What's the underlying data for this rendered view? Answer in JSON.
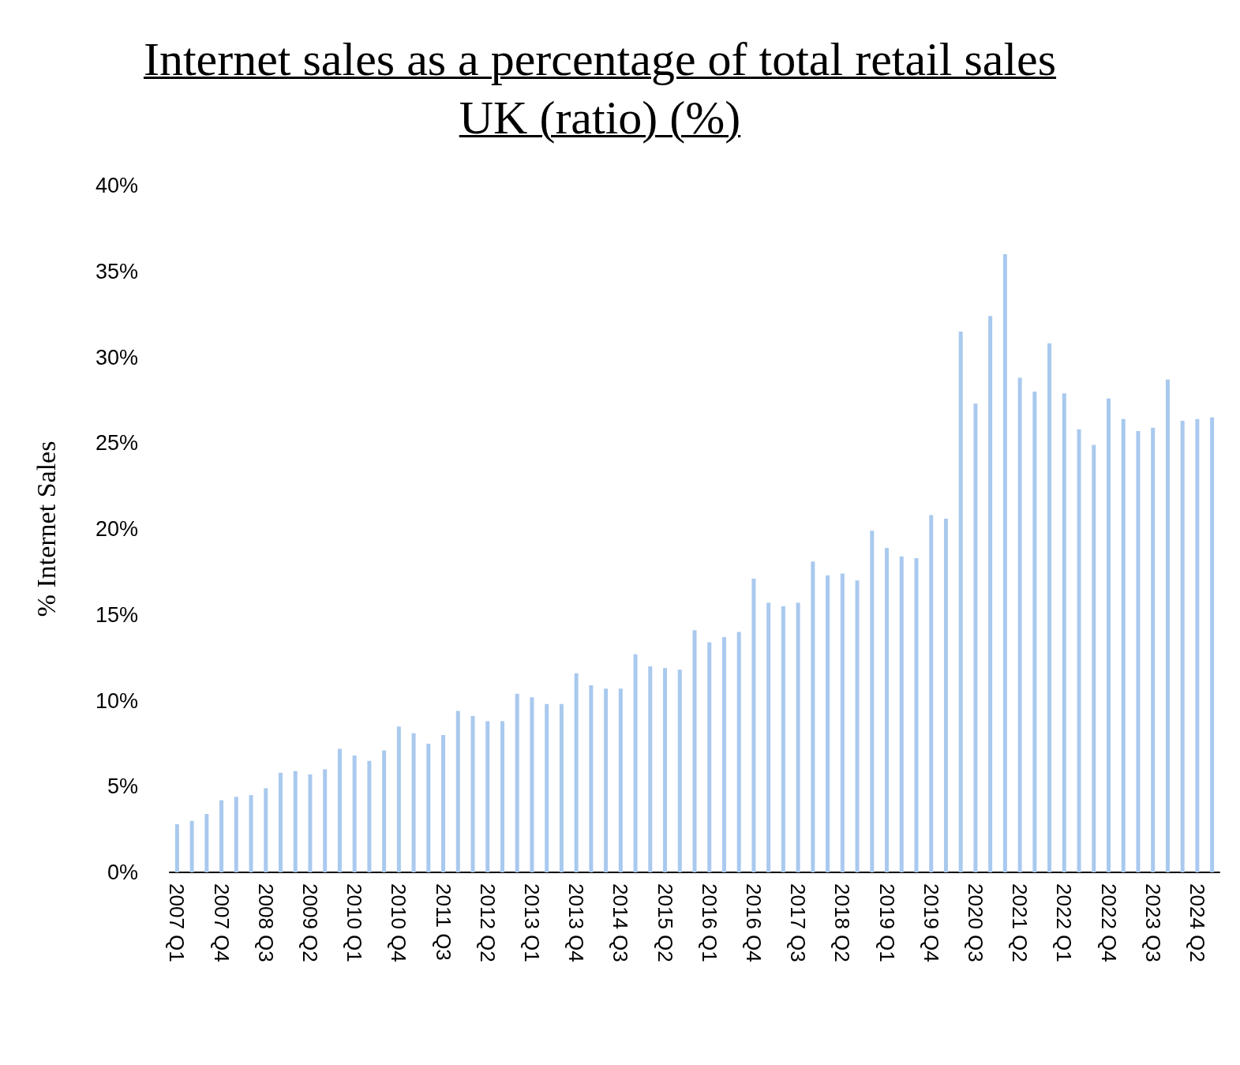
{
  "chart_data": {
    "type": "bar",
    "title": "Internet sales as a percentage of total retail sales UK (ratio) (%)",
    "ylabel": "% Internet Sales",
    "categories": [
      "2007 Q1",
      null,
      null,
      "2007 Q4",
      null,
      null,
      "2008 Q3",
      null,
      null,
      "2009 Q2",
      null,
      null,
      "2010 Q1",
      null,
      null,
      "2010 Q4",
      null,
      null,
      "2011 Q3",
      null,
      null,
      "2012 Q2",
      null,
      null,
      "2013 Q1",
      null,
      null,
      "2013 Q4",
      null,
      null,
      "2014 Q3",
      null,
      null,
      "2015 Q2",
      null,
      null,
      "2016 Q1",
      null,
      null,
      "2016 Q4",
      null,
      null,
      "2017 Q3",
      null,
      null,
      "2018 Q2",
      null,
      null,
      "2019 Q1",
      null,
      null,
      "2019 Q4",
      null,
      null,
      "2020 Q3",
      null,
      null,
      "2021 Q2",
      null,
      null,
      "2022 Q1",
      null,
      null,
      "2022 Q4",
      null,
      null,
      "2023 Q3",
      null,
      null,
      "2024 Q2",
      null
    ],
    "values": [
      2.8,
      3.0,
      3.4,
      4.2,
      4.4,
      4.5,
      4.9,
      5.8,
      5.9,
      5.7,
      6.0,
      7.2,
      6.8,
      6.5,
      7.1,
      8.5,
      8.1,
      7.5,
      8.0,
      9.4,
      9.1,
      8.8,
      8.8,
      10.4,
      10.2,
      9.8,
      9.8,
      11.6,
      10.9,
      10.7,
      10.7,
      12.7,
      12.0,
      11.9,
      11.8,
      14.1,
      13.4,
      13.7,
      14.0,
      17.1,
      15.7,
      15.5,
      15.7,
      18.1,
      17.3,
      17.4,
      17.0,
      19.9,
      18.9,
      18.4,
      18.3,
      20.8,
      20.6,
      31.5,
      27.3,
      32.4,
      36.0,
      28.8,
      28.0,
      30.8,
      27.9,
      25.8,
      24.9,
      27.6,
      26.4,
      25.7,
      25.9,
      28.7,
      26.3,
      26.4,
      26.5
    ],
    "color": "#a9c9ee",
    "ylim": [
      0,
      40
    ],
    "yticks": [
      {
        "value": 0,
        "label": "0%"
      },
      {
        "value": 5,
        "label": "5%"
      },
      {
        "value": 10,
        "label": "10%"
      },
      {
        "value": 15,
        "label": "15%"
      },
      {
        "value": 20,
        "label": "20%"
      },
      {
        "value": 25,
        "label": "25%"
      },
      {
        "value": 30,
        "label": "30%"
      },
      {
        "value": 35,
        "label": "35%"
      },
      {
        "value": 40,
        "label": "40%"
      }
    ],
    "grid": false
  }
}
